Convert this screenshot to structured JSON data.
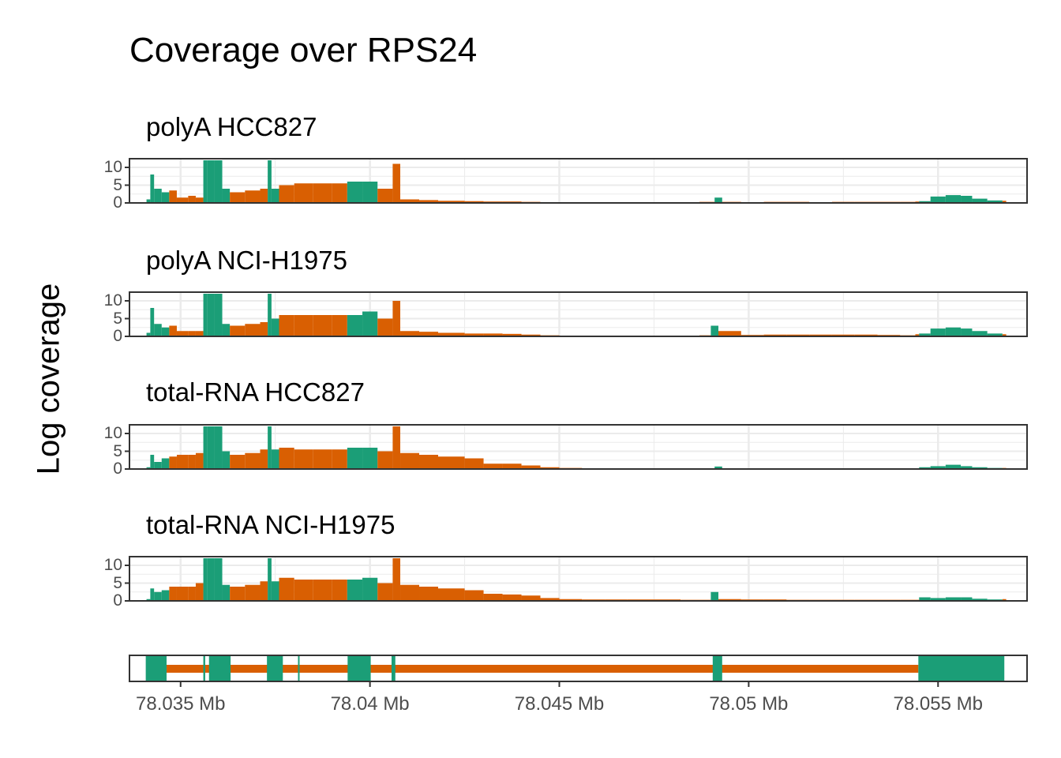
{
  "title": "Coverage over RPS24",
  "ylabel": "Log coverage",
  "colors": {
    "exon": "#1b9e77",
    "intron": "#d95f02",
    "grid": "#ebebeb",
    "frame": "#333333"
  },
  "chart_data": {
    "type": "area",
    "title": "Coverage over RPS24",
    "ylabel": "Log coverage",
    "xlabel": "",
    "xlim": [
      78.03365,
      78.05735
    ],
    "ylim": [
      0,
      12
    ],
    "x_ticks": [
      {
        "value": 78.035,
        "label": "78.035 Mb"
      },
      {
        "value": 78.04,
        "label": "78.04 Mb"
      },
      {
        "value": 78.045,
        "label": "78.045 Mb"
      },
      {
        "value": 78.05,
        "label": "78.05 Mb"
      },
      {
        "value": 78.055,
        "label": "78.055 Mb"
      }
    ],
    "y_ticks": [
      {
        "value": 0,
        "label": "0"
      },
      {
        "value": 5,
        "label": "5"
      },
      {
        "value": 10,
        "label": "10"
      }
    ],
    "grid": true,
    "exons": [
      [
        78.03408,
        78.03463
      ],
      [
        78.0356,
        78.03565
      ],
      [
        78.03575,
        78.03632
      ],
      [
        78.03728,
        78.0377
      ],
      [
        78.0381,
        78.03812
      ],
      [
        78.03941,
        78.04002
      ],
      [
        78.04057,
        78.04067
      ],
      [
        78.04905,
        78.0493
      ],
      [
        78.05448,
        78.05675
      ]
    ],
    "series": [
      {
        "name": "polyA HCC827",
        "points": [
          [
            78.0341,
            1
          ],
          [
            78.0342,
            8
          ],
          [
            78.0343,
            4
          ],
          [
            78.0345,
            3
          ],
          [
            78.0347,
            3.5
          ],
          [
            78.0349,
            1.5
          ],
          [
            78.0352,
            2
          ],
          [
            78.0354,
            1.5
          ],
          [
            78.0356,
            12
          ],
          [
            78.0357,
            12
          ],
          [
            78.0359,
            12
          ],
          [
            78.0361,
            4
          ],
          [
            78.0363,
            3
          ],
          [
            78.0367,
            3.5
          ],
          [
            78.0371,
            4
          ],
          [
            78.0373,
            12
          ],
          [
            78.0374,
            4
          ],
          [
            78.0376,
            5
          ],
          [
            78.038,
            5.5
          ],
          [
            78.0385,
            5.5
          ],
          [
            78.039,
            5.5
          ],
          [
            78.0394,
            6
          ],
          [
            78.0398,
            6
          ],
          [
            78.0402,
            4
          ],
          [
            78.0406,
            11
          ],
          [
            78.0408,
            1
          ],
          [
            78.0413,
            0.8
          ],
          [
            78.0418,
            0.6
          ],
          [
            78.0425,
            0.5
          ],
          [
            78.043,
            0.4
          ],
          [
            78.0435,
            0.4
          ],
          [
            78.044,
            0.3
          ],
          [
            78.0445,
            0.2
          ],
          [
            78.045,
            0.1
          ],
          [
            78.0456,
            0.1
          ],
          [
            78.0462,
            0.1
          ],
          [
            78.0468,
            0.1
          ],
          [
            78.0475,
            0.1
          ],
          [
            78.0482,
            0.1
          ],
          [
            78.0487,
            0.3
          ],
          [
            78.0491,
            1.5
          ],
          [
            78.0493,
            0.3
          ],
          [
            78.0498,
            0.2
          ],
          [
            78.0504,
            0.3
          ],
          [
            78.051,
            0.3
          ],
          [
            78.0516,
            0.2
          ],
          [
            78.0522,
            0.3
          ],
          [
            78.0528,
            0.3
          ],
          [
            78.0534,
            0.3
          ],
          [
            78.054,
            0.3
          ],
          [
            78.0544,
            0.4
          ],
          [
            78.0545,
            0.5
          ],
          [
            78.0548,
            1.8
          ],
          [
            78.0552,
            2.2
          ],
          [
            78.0556,
            2
          ],
          [
            78.0559,
            1.2
          ],
          [
            78.0563,
            0.7
          ],
          [
            78.0567,
            0.6
          ]
        ]
      },
      {
        "name": "polyA NCI-H1975",
        "points": [
          [
            78.0341,
            1
          ],
          [
            78.0342,
            8
          ],
          [
            78.0343,
            3.5
          ],
          [
            78.0345,
            2.5
          ],
          [
            78.0347,
            3
          ],
          [
            78.0349,
            1.5
          ],
          [
            78.0352,
            1.5
          ],
          [
            78.0354,
            1.5
          ],
          [
            78.0356,
            12
          ],
          [
            78.0357,
            12
          ],
          [
            78.0359,
            12
          ],
          [
            78.0361,
            3.5
          ],
          [
            78.0363,
            3
          ],
          [
            78.0367,
            3.5
          ],
          [
            78.0371,
            4
          ],
          [
            78.0373,
            12
          ],
          [
            78.0374,
            5
          ],
          [
            78.0376,
            6
          ],
          [
            78.038,
            6
          ],
          [
            78.0385,
            6
          ],
          [
            78.039,
            6
          ],
          [
            78.0394,
            6
          ],
          [
            78.0398,
            7
          ],
          [
            78.0402,
            5
          ],
          [
            78.0406,
            10
          ],
          [
            78.0408,
            1.5
          ],
          [
            78.0413,
            1.3
          ],
          [
            78.0418,
            1
          ],
          [
            78.0425,
            0.8
          ],
          [
            78.043,
            0.8
          ],
          [
            78.0435,
            0.7
          ],
          [
            78.044,
            0.5
          ],
          [
            78.0445,
            0.3
          ],
          [
            78.045,
            0.2
          ],
          [
            78.0456,
            0.1
          ],
          [
            78.0462,
            0.1
          ],
          [
            78.0468,
            0.1
          ],
          [
            78.0475,
            0.1
          ],
          [
            78.0482,
            0.2
          ],
          [
            78.0487,
            0.3
          ],
          [
            78.049,
            3
          ],
          [
            78.0492,
            1.5
          ],
          [
            78.0498,
            0.4
          ],
          [
            78.0504,
            0.5
          ],
          [
            78.051,
            0.5
          ],
          [
            78.0516,
            0.5
          ],
          [
            78.0522,
            0.5
          ],
          [
            78.0528,
            0.5
          ],
          [
            78.0534,
            0.4
          ],
          [
            78.054,
            0.3
          ],
          [
            78.0544,
            0.6
          ],
          [
            78.0545,
            0.8
          ],
          [
            78.0548,
            2.2
          ],
          [
            78.0552,
            2.5
          ],
          [
            78.0556,
            2.2
          ],
          [
            78.0559,
            1.5
          ],
          [
            78.0563,
            0.8
          ],
          [
            78.0567,
            0.6
          ]
        ]
      },
      {
        "name": "total-RNA HCC827",
        "points": [
          [
            78.0341,
            0.5
          ],
          [
            78.0342,
            4
          ],
          [
            78.0343,
            2
          ],
          [
            78.0345,
            3
          ],
          [
            78.0347,
            3.5
          ],
          [
            78.0349,
            4
          ],
          [
            78.0352,
            4
          ],
          [
            78.0354,
            4.5
          ],
          [
            78.0356,
            12
          ],
          [
            78.0357,
            12
          ],
          [
            78.0359,
            12
          ],
          [
            78.0361,
            5
          ],
          [
            78.0363,
            4
          ],
          [
            78.0367,
            4.5
          ],
          [
            78.0371,
            5.5
          ],
          [
            78.0373,
            12
          ],
          [
            78.0374,
            5.5
          ],
          [
            78.0376,
            6
          ],
          [
            78.038,
            5.5
          ],
          [
            78.0385,
            5.5
          ],
          [
            78.039,
            5.5
          ],
          [
            78.0394,
            6
          ],
          [
            78.0398,
            6
          ],
          [
            78.0402,
            5
          ],
          [
            78.0406,
            12
          ],
          [
            78.0408,
            4.5
          ],
          [
            78.0413,
            4
          ],
          [
            78.0418,
            3.5
          ],
          [
            78.0425,
            3
          ],
          [
            78.043,
            1.5
          ],
          [
            78.0435,
            1.5
          ],
          [
            78.044,
            1
          ],
          [
            78.0445,
            0.5
          ],
          [
            78.045,
            0.3
          ],
          [
            78.0456,
            0.2
          ],
          [
            78.0462,
            0.2
          ],
          [
            78.0468,
            0.2
          ],
          [
            78.0475,
            0.2
          ],
          [
            78.0482,
            0.2
          ],
          [
            78.0487,
            0.2
          ],
          [
            78.0491,
            0.7
          ],
          [
            78.0493,
            0.2
          ],
          [
            78.0498,
            0.2
          ],
          [
            78.0504,
            0.2
          ],
          [
            78.051,
            0.2
          ],
          [
            78.0516,
            0.2
          ],
          [
            78.0522,
            0.2
          ],
          [
            78.0528,
            0.2
          ],
          [
            78.0534,
            0.2
          ],
          [
            78.054,
            0.2
          ],
          [
            78.0544,
            0.2
          ],
          [
            78.0545,
            0.5
          ],
          [
            78.0548,
            0.8
          ],
          [
            78.0552,
            1.2
          ],
          [
            78.0556,
            0.8
          ],
          [
            78.0559,
            0.5
          ],
          [
            78.0563,
            0.3
          ],
          [
            78.0567,
            0.3
          ]
        ]
      },
      {
        "name": "total-RNA NCI-H1975",
        "points": [
          [
            78.0341,
            0.5
          ],
          [
            78.0342,
            3.5
          ],
          [
            78.0343,
            2.5
          ],
          [
            78.0345,
            3
          ],
          [
            78.0347,
            4
          ],
          [
            78.0349,
            4
          ],
          [
            78.0352,
            4
          ],
          [
            78.0354,
            5
          ],
          [
            78.0356,
            12
          ],
          [
            78.0357,
            12
          ],
          [
            78.0359,
            12
          ],
          [
            78.0361,
            4.5
          ],
          [
            78.0363,
            4
          ],
          [
            78.0367,
            4.5
          ],
          [
            78.0371,
            5.5
          ],
          [
            78.0373,
            12
          ],
          [
            78.0374,
            5.5
          ],
          [
            78.0376,
            6.5
          ],
          [
            78.038,
            6
          ],
          [
            78.0385,
            6
          ],
          [
            78.039,
            6
          ],
          [
            78.0394,
            6
          ],
          [
            78.0398,
            6.5
          ],
          [
            78.0402,
            5
          ],
          [
            78.0406,
            12
          ],
          [
            78.0408,
            4.5
          ],
          [
            78.0413,
            4
          ],
          [
            78.0418,
            3.5
          ],
          [
            78.0425,
            3
          ],
          [
            78.043,
            2
          ],
          [
            78.0435,
            1.8
          ],
          [
            78.044,
            1.5
          ],
          [
            78.0445,
            0.8
          ],
          [
            78.045,
            0.5
          ],
          [
            78.0456,
            0.4
          ],
          [
            78.0462,
            0.4
          ],
          [
            78.0468,
            0.4
          ],
          [
            78.0475,
            0.4
          ],
          [
            78.0482,
            0.3
          ],
          [
            78.0487,
            0.3
          ],
          [
            78.049,
            2.5
          ],
          [
            78.0492,
            0.5
          ],
          [
            78.0498,
            0.4
          ],
          [
            78.0504,
            0.4
          ],
          [
            78.051,
            0.3
          ],
          [
            78.0516,
            0.3
          ],
          [
            78.0522,
            0.3
          ],
          [
            78.0528,
            0.3
          ],
          [
            78.0534,
            0.3
          ],
          [
            78.054,
            0.3
          ],
          [
            78.0544,
            0.3
          ],
          [
            78.0545,
            1
          ],
          [
            78.0548,
            0.8
          ],
          [
            78.0552,
            1
          ],
          [
            78.0556,
            1
          ],
          [
            78.0559,
            0.6
          ],
          [
            78.0563,
            0.4
          ],
          [
            78.0567,
            0.5
          ]
        ]
      }
    ]
  }
}
